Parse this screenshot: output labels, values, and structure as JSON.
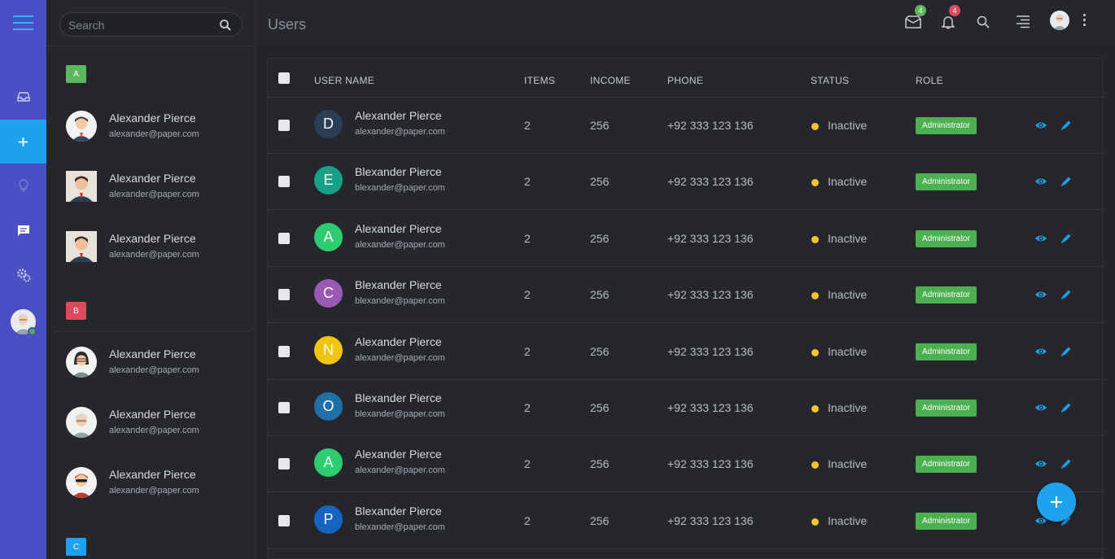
{
  "colors": {
    "rail_bg": "#4b4fc4",
    "accent": "#1ea1ef",
    "status_inactive": "#f4c430",
    "role_badge": "#4caf50",
    "group_a": "#5cb85c",
    "group_b": "#e0485b",
    "group_c": "#1ea1ef"
  },
  "rail": {
    "items": [
      {
        "icon": "inbox-icon"
      },
      {
        "icon": "plus-icon",
        "active": true
      },
      {
        "icon": "lightbulb-icon"
      },
      {
        "icon": "chat-icon"
      },
      {
        "icon": "gears-icon"
      }
    ]
  },
  "search": {
    "placeholder": "Search"
  },
  "contacts": {
    "groups": [
      {
        "letter": "A",
        "people": [
          {
            "name": "Alexander Pierce",
            "email": "alexander@paper.com"
          },
          {
            "name": "Alexander Pierce",
            "email": "alexander@paper.com"
          },
          {
            "name": "Alexander Pierce",
            "email": "alexander@paper.com"
          }
        ]
      },
      {
        "letter": "B",
        "people": [
          {
            "name": "Alexander Pierce",
            "email": "alexander@paper.com"
          },
          {
            "name": "Alexander Pierce",
            "email": "alexander@paper.com"
          },
          {
            "name": "Alexander Pierce",
            "email": "alexander@paper.com"
          }
        ]
      },
      {
        "letter": "C",
        "people": []
      }
    ]
  },
  "header": {
    "title": "Users",
    "mail_count": "4",
    "notification_count": "4"
  },
  "table": {
    "columns": [
      "USER NAME",
      "ITEMS",
      "INCOME",
      "PHONE",
      "STATUS",
      "ROLE"
    ],
    "rows": [
      {
        "initial": "D",
        "avatar_color": "#2c3e57",
        "name": "Alexander Pierce",
        "email": "alexander@paper.com",
        "items": "2",
        "income": "256",
        "phone": "+92 333 123 136",
        "status": "Inactive",
        "role": "Administrator"
      },
      {
        "initial": "E",
        "avatar_color": "#16a085",
        "name": "Blexander Pierce",
        "email": "blexander@paper.com",
        "items": "2",
        "income": "256",
        "phone": "+92 333 123 136",
        "status": "Inactive",
        "role": "Administrator"
      },
      {
        "initial": "A",
        "avatar_color": "#2ecc71",
        "name": "Alexander Pierce",
        "email": "alexander@paper.com",
        "items": "2",
        "income": "256",
        "phone": "+92 333 123 136",
        "status": "Inactive",
        "role": "Administrator"
      },
      {
        "initial": "C",
        "avatar_color": "#9b59b6",
        "name": "Blexander Pierce",
        "email": "blexander@paper.com",
        "items": "2",
        "income": "256",
        "phone": "+92 333 123 136",
        "status": "Inactive",
        "role": "Administrator"
      },
      {
        "initial": "N",
        "avatar_color": "#f1c40f",
        "name": "Alexander Pierce",
        "email": "alexander@paper.com",
        "items": "2",
        "income": "256",
        "phone": "+92 333 123 136",
        "status": "Inactive",
        "role": "Administrator"
      },
      {
        "initial": "O",
        "avatar_color": "#1f6fa8",
        "name": "Blexander Pierce",
        "email": "blexander@paper.com",
        "items": "2",
        "income": "256",
        "phone": "+92 333 123 136",
        "status": "Inactive",
        "role": "Administrator"
      },
      {
        "initial": "A",
        "avatar_color": "#2ecc71",
        "name": "Alexander Pierce",
        "email": "alexander@paper.com",
        "items": "2",
        "income": "256",
        "phone": "+92 333 123 136",
        "status": "Inactive",
        "role": "Administrator"
      },
      {
        "initial": "P",
        "avatar_color": "#1565c0",
        "name": "Blexander Pierce",
        "email": "blexander@paper.com",
        "items": "2",
        "income": "256",
        "phone": "+92 333 123 136",
        "status": "Inactive",
        "role": "Administrator"
      }
    ]
  }
}
